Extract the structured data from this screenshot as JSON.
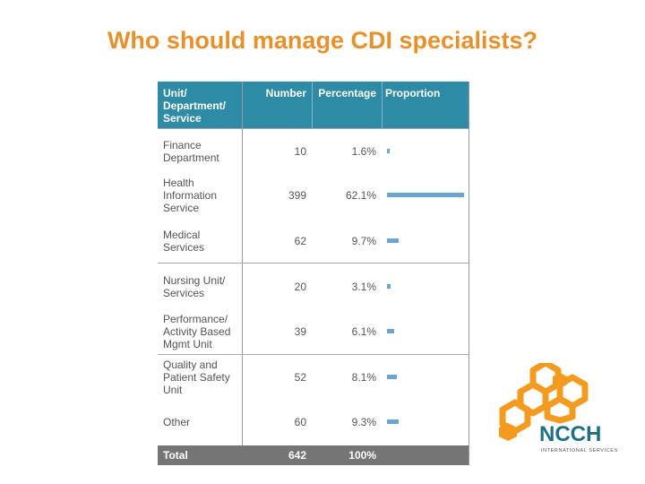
{
  "slide": {
    "title": "Who should manage CDI specialists?"
  },
  "table": {
    "headers": {
      "unit": "Unit/ Department/ Service",
      "number": "Number",
      "percentage": "Percentage",
      "proportion": "Proportion"
    },
    "rows": [
      {
        "unit": "Finance Department",
        "number": "10",
        "percentage": "1.6%",
        "proportion": 0.016
      },
      {
        "unit": "Health Information Service",
        "number": "399",
        "percentage": "62.1%",
        "proportion": 0.621
      },
      {
        "unit": "Medical Services",
        "number": "62",
        "percentage": "9.7%",
        "proportion": 0.097
      },
      {
        "unit": "Nursing Unit/ Services",
        "number": "20",
        "percentage": "3.1%",
        "proportion": 0.031
      },
      {
        "unit": "Performance/ Activity Based Mgmt Unit",
        "number": "39",
        "percentage": "6.1%",
        "proportion": 0.061
      },
      {
        "unit": "Quality and Patient Safety Unit",
        "number": "52",
        "percentage": "8.1%",
        "proportion": 0.081
      },
      {
        "unit": "Other",
        "number": "60",
        "percentage": "9.3%",
        "proportion": 0.093
      }
    ],
    "total": {
      "label": "Total",
      "number": "642",
      "percentage": "100%"
    }
  },
  "logo": {
    "name": "NCCH",
    "tagline": "INTERNATIONAL SERVICES"
  },
  "colors": {
    "title": "#e8912c",
    "header_bg": "#2e8ba6",
    "bar": "#6aa5d3",
    "total_bg": "#757575",
    "logo_orange": "#f39a1f",
    "logo_teal": "#1c6f86"
  }
}
